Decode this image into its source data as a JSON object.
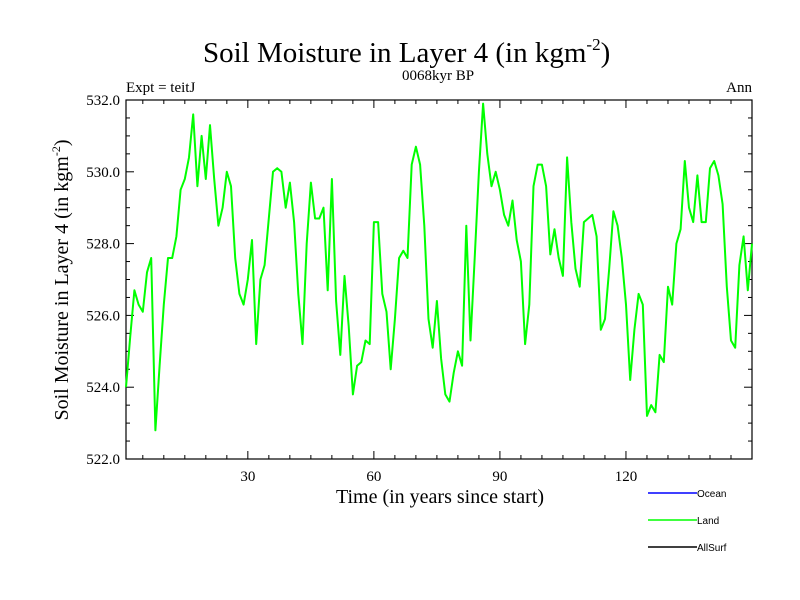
{
  "chart_data": {
    "type": "line",
    "title": "Soil Moisture in Layer 4 (in kgm",
    "title_sup": "-2",
    "title_close": ")",
    "subtitle": "0068kyr BP",
    "left_label": "Expt = teitJ",
    "right_label": "Ann",
    "xlabel": "Time (in years since start)",
    "ylabel": "Soil Moisture in Layer 4 (in kgm",
    "ylabel_sup": "-2",
    "ylabel_close": ")",
    "xlim": [
      1,
      150
    ],
    "ylim": [
      522,
      532
    ],
    "xticks": [
      30,
      60,
      90,
      120
    ],
    "xtick_labels": [
      "30",
      "60",
      "90",
      "120"
    ],
    "yticks": [
      522,
      524,
      526,
      528,
      530,
      532
    ],
    "ytick_labels": [
      "522.0",
      "524.0",
      "526.0",
      "528.0",
      "530.0",
      "532.0"
    ],
    "legend_position": "bottom-right",
    "legend": [
      {
        "name": "Ocean",
        "color": "#0000ff"
      },
      {
        "name": "Land",
        "color": "#00ff00"
      },
      {
        "name": "AllSurf",
        "color": "#000000"
      }
    ],
    "series": [
      {
        "name": "Land",
        "color": "#00ff00",
        "x": [
          1,
          2,
          3,
          4,
          5,
          6,
          7,
          8,
          9,
          10,
          11,
          12,
          13,
          14,
          15,
          16,
          17,
          18,
          19,
          20,
          21,
          22,
          23,
          24,
          25,
          26,
          27,
          28,
          29,
          30,
          31,
          32,
          33,
          34,
          35,
          36,
          37,
          38,
          39,
          40,
          41,
          42,
          43,
          44,
          45,
          46,
          47,
          48,
          49,
          50,
          51,
          52,
          53,
          54,
          55,
          56,
          57,
          58,
          59,
          60,
          61,
          62,
          63,
          64,
          65,
          66,
          67,
          68,
          69,
          70,
          71,
          72,
          73,
          74,
          75,
          76,
          77,
          78,
          79,
          80,
          81,
          82,
          83,
          84,
          85,
          86,
          87,
          88,
          89,
          90,
          91,
          92,
          93,
          94,
          95,
          96,
          97,
          98,
          99,
          100,
          101,
          102,
          103,
          104,
          105,
          106,
          107,
          108,
          109,
          110,
          111,
          112,
          113,
          114,
          115,
          116,
          117,
          118,
          119,
          120,
          121,
          122,
          123,
          124,
          125,
          126,
          127,
          128,
          129,
          130,
          131,
          132,
          133,
          134,
          135,
          136,
          137,
          138,
          139,
          140,
          141,
          142,
          143,
          144,
          145,
          146,
          147,
          148,
          149,
          150
        ],
        "values": [
          524.0,
          525.4,
          526.7,
          526.3,
          526.1,
          527.2,
          527.6,
          522.8,
          524.6,
          526.3,
          527.6,
          527.6,
          528.2,
          529.5,
          529.8,
          530.4,
          531.6,
          529.6,
          531.0,
          529.8,
          531.3,
          529.8,
          528.5,
          529.0,
          530.0,
          529.6,
          527.6,
          526.6,
          526.3,
          527.0,
          528.1,
          525.2,
          527.0,
          527.4,
          528.7,
          530.0,
          530.1,
          530.0,
          529.0,
          529.7,
          528.6,
          526.6,
          525.2,
          528.0,
          529.7,
          528.7,
          528.7,
          529.0,
          526.7,
          529.8,
          526.4,
          524.9,
          527.1,
          525.7,
          523.8,
          524.6,
          524.7,
          525.3,
          525.2,
          528.6,
          528.6,
          526.6,
          526.1,
          524.5,
          525.9,
          527.6,
          527.8,
          527.6,
          530.2,
          530.7,
          530.2,
          528.5,
          525.9,
          525.1,
          526.4,
          524.8,
          523.8,
          523.6,
          524.4,
          525.0,
          524.6,
          528.5,
          525.3,
          527.6,
          530.0,
          531.9,
          530.5,
          529.6,
          530.0,
          529.5,
          528.8,
          528.5,
          529.2,
          528.1,
          527.5,
          525.2,
          526.3,
          529.6,
          530.2,
          530.2,
          529.6,
          527.7,
          528.4,
          527.6,
          527.1,
          530.4,
          528.6,
          527.3,
          526.8,
          528.6,
          528.7,
          528.8,
          528.2,
          525.6,
          525.9,
          527.3,
          528.9,
          528.5,
          527.6,
          526.3,
          524.2,
          525.6,
          526.6,
          526.3,
          523.2,
          523.5,
          523.3,
          524.9,
          524.7,
          526.8,
          526.3,
          528.0,
          528.4,
          530.3,
          529.0,
          528.6,
          529.9,
          528.6,
          528.6,
          530.1,
          530.3,
          529.9,
          529.1,
          526.8,
          525.3,
          525.1,
          527.4,
          528.2,
          526.7,
          528.0
        ]
      }
    ]
  }
}
